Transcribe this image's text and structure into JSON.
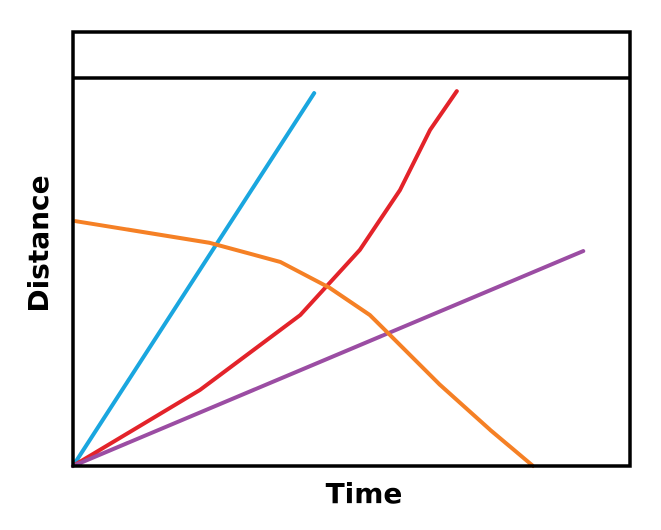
{
  "chart_data": {
    "type": "line",
    "x_label": "Time",
    "y_label": "Distance",
    "xlim": [
      0,
      100
    ],
    "ylim": [
      0,
      100
    ],
    "series": [
      {
        "color": "#1aa6df",
        "x": [
          0,
          43.3
        ],
        "values": [
          0,
          96.1
        ]
      },
      {
        "color": "#e3232a",
        "x": [
          0,
          22.8,
          40.8,
          51.5,
          58.7,
          64.1,
          68.9
        ],
        "values": [
          0,
          19.6,
          38.9,
          55.7,
          71.1,
          86.6,
          96.6
        ]
      },
      {
        "color": "#9b4da3",
        "x": [
          0,
          91.6
        ],
        "values": [
          0,
          55.4
        ]
      },
      {
        "color": "#f58025",
        "x": [
          0.5,
          24.6,
          37.2,
          46.1,
          53.3,
          58.7,
          65.9,
          74.9,
          82.6
        ],
        "values": [
          63.1,
          57.5,
          52.6,
          45.9,
          38.9,
          31.2,
          20.9,
          9.3,
          0
        ]
      }
    ]
  }
}
